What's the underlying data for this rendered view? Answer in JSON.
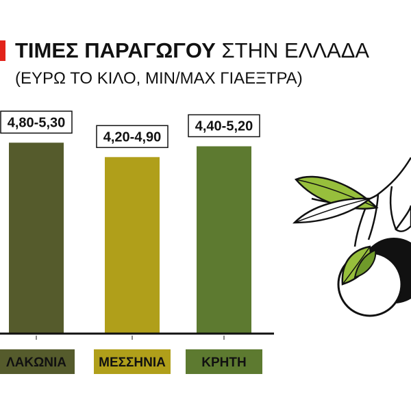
{
  "header": {
    "title_bold": "ΤΙΜΕΣ ΠΑΡΑΓΩΓΟΥ",
    "title_rest": " ΣΤΗΝ ΕΛΛΑΔΑ",
    "subtitle": "(ΕΥΡΩ ΤΟ ΚΙΛΟ, MIN/MAX ΓΙΑΕΞΤΡΑ)"
  },
  "colors": {
    "accent": "#e2231a",
    "laconia": "#555b2c",
    "messinia": "#b09f1a",
    "crete": "#5d7a30",
    "axis": "#111111"
  },
  "chart_data": {
    "type": "bar",
    "categories": [
      "ΛΑΚΩΝΙΑ",
      "ΜΕΣΣΗΝΙΑ",
      "ΚΡΗΤΗ"
    ],
    "value_labels": [
      "4,80-5,30",
      "4,20-4,90",
      "4,40-5,20"
    ],
    "series": [
      {
        "min": [
          4.8,
          4.2,
          4.4
        ],
        "max": [
          5.3,
          4.9,
          5.2
        ]
      }
    ],
    "values": [
      5.3,
      4.9,
      5.2
    ],
    "ylim": [
      0,
      5.8
    ],
    "grid": false,
    "legend": "none",
    "title": "ΤΙΜΕΣ ΠΑΡΑΓΩΓΟΥ ΣΤΗΝ ΕΛΛΑΔΑ",
    "subtitle": "(ΕΥΡΩ ΤΟ ΚΙΛΟ, MIN/MAX ΓΙΑΕΞΤΡΑ)",
    "xlabel": "",
    "ylabel": ""
  },
  "illustration": {
    "icon": "olive-branch-icon"
  }
}
